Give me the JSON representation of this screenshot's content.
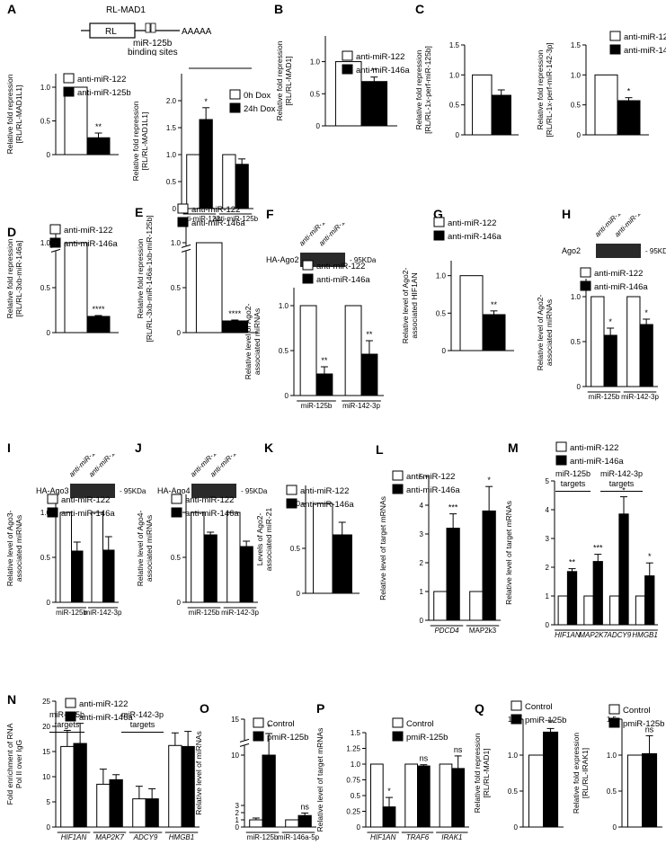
{
  "figure": {
    "schematic": {
      "construct_label": "RL-MAD1",
      "box_label": "RL",
      "tail": "AAAAA",
      "note_line1": "miR-125b",
      "note_line2": "binding sites"
    },
    "blots": {
      "F": {
        "title": "HA-Ago2",
        "size": "95KDa"
      },
      "H": {
        "title": "Ago2",
        "size": "95KDa"
      },
      "I": {
        "title": "HA-Ago3",
        "size": "95KDa"
      },
      "J": {
        "title": "HA-Ago4",
        "size": "95KDa"
      }
    },
    "blot_lanes": [
      "anti-miR-122",
      "anti-miR-146a"
    ],
    "m_groups": [
      "miR-125b\ntargets",
      "miR-142-3p\ntargets"
    ],
    "n_groups": [
      "miR-125b\ntargets",
      "miR-142-3p\ntargets"
    ]
  },
  "chart_data": [
    {
      "id": "A1",
      "panel_label": "A",
      "type": "bar",
      "ylabel": "Relative fold repression\n[RL/RL-MAD1L1]",
      "ylim": [
        0,
        1.2
      ],
      "yticks": [
        0,
        0.5,
        1.0
      ],
      "ytick_labels": [
        "0",
        "0.5",
        "1.0"
      ],
      "series": [
        {
          "name": "anti-miR-122",
          "fill": "#ffffff",
          "values": [
            1.0
          ],
          "errors": [
            0
          ]
        },
        {
          "name": "anti-miR-125b",
          "fill": "#000000",
          "values": [
            0.25
          ],
          "errors": [
            0.07
          ]
        }
      ],
      "categories": [
        ""
      ],
      "annotations": [
        "**"
      ]
    },
    {
      "id": "A2",
      "type": "bar",
      "ylabel": "Relative fold repression\n[RL/RL-MAD1L1]",
      "ylim": [
        0,
        2.5
      ],
      "yticks": [
        0,
        0.5,
        1.0,
        1.5,
        2.0
      ],
      "ytick_labels": [
        "0",
        "0.5",
        "1.0",
        "1.5",
        "2.0"
      ],
      "series": [
        {
          "name": "0h Dox",
          "fill": "#ffffff",
          "values": [
            1.0,
            1.0
          ],
          "errors": [
            0,
            0
          ]
        },
        {
          "name": "24h Dox",
          "fill": "#000000",
          "values": [
            1.65,
            0.82
          ],
          "errors": [
            0.22,
            0.1
          ]
        }
      ],
      "categories": [
        "anti-miR-122",
        "anti-miR-125b"
      ],
      "annotations": [
        "*"
      ]
    },
    {
      "id": "B",
      "panel_label": "B",
      "type": "bar",
      "ylabel": "Relative fold repression\n[RL/RL-MAD1]",
      "ylim": [
        0,
        1.4
      ],
      "yticks": [
        0,
        0.5,
        1.0
      ],
      "ytick_labels": [
        "0",
        "0.5",
        "1.0"
      ],
      "series": [
        {
          "name": "anti-miR-122",
          "fill": "#ffffff",
          "values": [
            1.0
          ],
          "errors": [
            0
          ]
        },
        {
          "name": "anti-miR-146a",
          "fill": "#000000",
          "values": [
            0.69
          ],
          "errors": [
            0.07
          ]
        }
      ],
      "categories": [
        ""
      ],
      "annotations": [
        "**"
      ]
    },
    {
      "id": "C1",
      "panel_label": "C",
      "type": "bar",
      "ylabel": "Relative fold repression\n[RL/RL-1x-perf-miR-125b]",
      "ylim": [
        0,
        1.5
      ],
      "yticks": [
        0,
        0.5,
        1.0,
        1.5
      ],
      "ytick_labels": [
        "0",
        "0.5",
        "1.0",
        "1.5"
      ],
      "series": [
        {
          "name": "anti-miR-122",
          "fill": "#ffffff",
          "values": [
            1.0
          ],
          "errors": [
            0
          ]
        },
        {
          "name": "anti-miR-146a",
          "fill": "#000000",
          "values": [
            0.66
          ],
          "errors": [
            0.09
          ]
        }
      ],
      "categories": [
        ""
      ],
      "annotations": []
    },
    {
      "id": "C2",
      "type": "bar",
      "ylabel": "Relative fold repression\n[RL/RL-1x-perf-miR-142-3p]",
      "ylim": [
        0,
        1.5
      ],
      "yticks": [
        0,
        0.5,
        1.0,
        1.5
      ],
      "ytick_labels": [
        "0",
        "0.5",
        "1.0",
        "1.5"
      ],
      "series": [
        {
          "name": "anti-miR-122",
          "fill": "#ffffff",
          "values": [
            1.0
          ],
          "errors": [
            0
          ]
        },
        {
          "name": "anti-miR-146a",
          "fill": "#000000",
          "values": [
            0.57
          ],
          "errors": [
            0.05
          ]
        }
      ],
      "categories": [
        ""
      ],
      "annotations": [
        "*"
      ]
    },
    {
      "id": "D",
      "panel_label": "D",
      "type": "bar",
      "ylabel": "Relative fold repression\n[RL/RL-3xb-miR-146a]",
      "ylim": [
        0,
        1.2
      ],
      "yticks": [
        0,
        0.5,
        1.0
      ],
      "ytick_labels": [
        "0",
        "0.5",
        "1.0"
      ],
      "axis_break": true,
      "series": [
        {
          "name": "anti-miR-122",
          "fill": "#ffffff",
          "values": [
            1.0
          ],
          "errors": [
            0
          ]
        },
        {
          "name": "anti-miR-146a",
          "fill": "#000000",
          "values": [
            0.18
          ],
          "errors": [
            0.01
          ]
        }
      ],
      "categories": [
        ""
      ],
      "annotations": [
        "****"
      ]
    },
    {
      "id": "E",
      "panel_label": "E",
      "type": "bar",
      "ylabel": "Relative fold repression\n[RL/RL-3xb-miR-146a-1xb-miR-125b]",
      "ylim": [
        0,
        1.2
      ],
      "yticks": [
        0,
        0.5,
        1.0
      ],
      "ytick_labels": [
        "0",
        "0.5",
        "1.0"
      ],
      "axis_break": true,
      "series": [
        {
          "name": "anti-miR-122",
          "fill": "#ffffff",
          "values": [
            1.0
          ],
          "errors": [
            0
          ]
        },
        {
          "name": "anti-miR-146a",
          "fill": "#000000",
          "values": [
            0.13
          ],
          "errors": [
            0.01
          ]
        }
      ],
      "categories": [
        ""
      ],
      "annotations": [
        "****"
      ]
    },
    {
      "id": "F",
      "panel_label": "F",
      "type": "bar",
      "ylabel": "Relative level of Ago2-\nassociated miRNAs",
      "ylim": [
        0,
        1.2
      ],
      "yticks": [
        0,
        0.5,
        1.0
      ],
      "ytick_labels": [
        "0",
        "0.5",
        "1.0"
      ],
      "series": [
        {
          "name": "anti-miR-122",
          "fill": "#ffffff",
          "values": [
            1.0,
            1.0
          ],
          "errors": [
            0,
            0
          ]
        },
        {
          "name": "anti-miR-146a",
          "fill": "#000000",
          "values": [
            0.24,
            0.46
          ],
          "errors": [
            0.08,
            0.15
          ]
        }
      ],
      "categories": [
        "miR-125b",
        "miR-142-3p"
      ],
      "annotations": [
        "**",
        "**"
      ]
    },
    {
      "id": "G",
      "panel_label": "G",
      "type": "bar",
      "ylabel": "Relative level of Ago2-\nassociated HIF1AN",
      "ylim": [
        0,
        1.2
      ],
      "yticks": [
        0,
        0.5,
        1.0
      ],
      "ytick_labels": [
        "0",
        "0.5",
        "1.0"
      ],
      "series": [
        {
          "name": "anti-miR-122",
          "fill": "#ffffff",
          "values": [
            1.0
          ],
          "errors": [
            0
          ]
        },
        {
          "name": "anti-miR-146a",
          "fill": "#000000",
          "values": [
            0.48
          ],
          "errors": [
            0.05
          ]
        }
      ],
      "categories": [
        ""
      ],
      "annotations": [
        "**"
      ]
    },
    {
      "id": "H",
      "panel_label": "H",
      "type": "bar",
      "ylabel": "Relative level of Ago2-\nassociated miRNAs",
      "ylim": [
        0,
        1.2
      ],
      "yticks": [
        0,
        0.5,
        1.0
      ],
      "ytick_labels": [
        "0",
        "0.5",
        "1.0"
      ],
      "series": [
        {
          "name": "anti-miR-122",
          "fill": "#ffffff",
          "values": [
            1.0,
            1.0
          ],
          "errors": [
            0,
            0
          ]
        },
        {
          "name": "anti-miR-146a",
          "fill": "#000000",
          "values": [
            0.57,
            0.69
          ],
          "errors": [
            0.08,
            0.06
          ]
        }
      ],
      "categories": [
        "miR-125b",
        "miR-142-3p"
      ],
      "annotations": [
        "*",
        "*"
      ]
    },
    {
      "id": "I",
      "panel_label": "I",
      "type": "bar",
      "ylabel": "Relative level of Ago3-\nassociated miRNAs",
      "ylim": [
        0,
        1.2
      ],
      "yticks": [
        0,
        0.5,
        1.0
      ],
      "ytick_labels": [
        "0",
        "0.5",
        "1.0"
      ],
      "series": [
        {
          "name": "anti-miR-122",
          "fill": "#ffffff",
          "values": [
            1.0,
            1.0
          ],
          "errors": [
            0,
            0
          ]
        },
        {
          "name": "anti-miR-146a",
          "fill": "#000000",
          "values": [
            0.57,
            0.58
          ],
          "errors": [
            0.1,
            0.15
          ]
        }
      ],
      "categories": [
        "miR-125b",
        "miR-142-3p"
      ],
      "annotations": []
    },
    {
      "id": "J",
      "panel_label": "J",
      "type": "bar",
      "ylabel": "Relative level of Ago4-\nassociated miRNAs",
      "ylim": [
        0,
        1.2
      ],
      "yticks": [
        0,
        0.5,
        1.0
      ],
      "ytick_labels": [
        "0",
        "0.5",
        "1.0"
      ],
      "series": [
        {
          "name": "anti-miR-122",
          "fill": "#ffffff",
          "values": [
            1.0,
            1.0
          ],
          "errors": [
            0,
            0
          ]
        },
        {
          "name": "anti-miR-146a",
          "fill": "#000000",
          "values": [
            0.75,
            0.62
          ],
          "errors": [
            0.03,
            0.06
          ]
        }
      ],
      "categories": [
        "miR-125b",
        "miR-142-3p"
      ],
      "annotations": []
    },
    {
      "id": "K",
      "panel_label": "K",
      "type": "bar",
      "ylabel": "Levels of  Ago2-\nassociated miR-21",
      "ylim": [
        0,
        1.2
      ],
      "yticks": [
        0,
        0.5,
        1.0
      ],
      "ytick_labels": [
        "0",
        "0.5",
        "1.0"
      ],
      "series": [
        {
          "name": "anti-miR-122",
          "fill": "#ffffff",
          "values": [
            1.0
          ],
          "errors": [
            0
          ]
        },
        {
          "name": "anti-miR-146a",
          "fill": "#000000",
          "values": [
            0.65
          ],
          "errors": [
            0.14
          ]
        }
      ],
      "categories": [
        ""
      ],
      "annotations": []
    },
    {
      "id": "L",
      "panel_label": "L",
      "type": "bar",
      "ylabel": "Relative level of target mRNAs",
      "ylim": [
        0,
        5
      ],
      "yticks": [
        0,
        1,
        2,
        3,
        4,
        5
      ],
      "ytick_labels": [
        "0",
        "1",
        "2",
        "3",
        "4",
        "5"
      ],
      "series": [
        {
          "name": "anti-miR-122",
          "fill": "#ffffff",
          "values": [
            1,
            1
          ],
          "errors": [
            0,
            0
          ]
        },
        {
          "name": "anti-miR-146a",
          "fill": "#000000",
          "values": [
            3.2,
            3.8
          ],
          "errors": [
            0.5,
            0.85
          ]
        }
      ],
      "categories": [
        "PDCD4",
        "MAP2k3"
      ],
      "annotations": [
        "***",
        "*"
      ]
    },
    {
      "id": "M",
      "panel_label": "M",
      "type": "bar",
      "ylabel": "Relative level of target mRNAs",
      "ylim": [
        0,
        5
      ],
      "yticks": [
        0,
        1,
        2,
        3,
        4,
        5
      ],
      "ytick_labels": [
        "0",
        "1",
        "2",
        "3",
        "4",
        "5"
      ],
      "series": [
        {
          "name": "anti-miR-122",
          "fill": "#ffffff",
          "values": [
            1,
            1,
            1,
            1
          ],
          "errors": [
            0,
            0,
            0,
            0
          ]
        },
        {
          "name": "anti-miR-146a",
          "fill": "#000000",
          "values": [
            1.85,
            2.2,
            3.85,
            1.7
          ],
          " errors": [
            0
          ],
          "errors": [
            0.1,
            0.25,
            0.6,
            0.45
          ]
        }
      ],
      "categories": [
        "HIF1AN",
        "MAP2K7",
        "ADCY9",
        "HMGB1"
      ],
      "annotations": [
        "**",
        "***",
        "*",
        "*"
      ]
    },
    {
      "id": "N",
      "panel_label": "N",
      "type": "bar",
      "ylabel": "Fold enrichment of RNA\nPol II over IgG",
      "ylim": [
        0,
        25
      ],
      "yticks": [
        0,
        5,
        10,
        15,
        20,
        25
      ],
      "ytick_labels": [
        "0",
        "5",
        "10",
        "15",
        "20",
        "25"
      ],
      "series": [
        {
          "name": "anti-miR-122",
          "fill": "#ffffff",
          "values": [
            16,
            8.5,
            5.6,
            16.2
          ],
          "errors": [
            3.2,
            3,
            2.5,
            2.5
          ]
        },
        {
          "name": "anti-miR-146a",
          "fill": "#000000",
          "values": [
            16.6,
            9.4,
            5.6,
            16
          ],
          "errors": [
            4,
            1,
            2,
            3
          ]
        }
      ],
      "categories": [
        "HIF1AN",
        "MAP2K7",
        "ADCY9",
        "HMGB1"
      ],
      "annotations": []
    },
    {
      "id": "O",
      "panel_label": "O",
      "type": "bar",
      "ylabel": "Relative level of miRNAs",
      "ylim": [
        0,
        15
      ],
      "yticks": [
        0,
        1,
        2,
        3,
        10,
        15
      ],
      "ytick_labels": [
        "0",
        "1",
        "2",
        "3",
        "10",
        "15"
      ],
      "axis_break": true,
      "series": [
        {
          "name": "Control",
          "fill": "#ffffff",
          "values": [
            1,
            1
          ],
          "errors": [
            0.25,
            0
          ]
        },
        {
          "name": "pmiR-125b",
          "fill": "#000000",
          "values": [
            10,
            1.6
          ],
          "errors": [
            3,
            0.35
          ]
        }
      ],
      "categories": [
        "miR-125b",
        "miR-146a-5p"
      ],
      "annotations": [
        "*",
        "ns"
      ]
    },
    {
      "id": "P",
      "panel_label": "P",
      "type": "bar",
      "ylabel": "Relative level of target mRNAs",
      "ylim": [
        0,
        1.5
      ],
      "yticks": [
        0,
        0.25,
        0.5,
        0.75,
        1.0,
        1.25,
        1.5
      ],
      "ytick_labels": [
        "0",
        "0.25",
        "0.5",
        "0.75",
        "1.0",
        "1.25",
        "1.5"
      ],
      "series": [
        {
          "name": "Control",
          "fill": "#ffffff",
          "values": [
            1,
            1,
            1
          ],
          "errors": [
            0,
            0,
            0
          ]
        },
        {
          "name": "pmiR-125b",
          "fill": "#000000",
          "values": [
            0.32,
            0.97,
            0.93
          ],
          "errors": [
            0.15,
            0.02,
            0.2
          ]
        }
      ],
      "categories": [
        "HIF1AN",
        "TRAF6",
        "IRAK1"
      ],
      "annotations": [
        "*",
        "ns",
        "ns"
      ]
    },
    {
      "id": "Q1",
      "panel_label": "Q",
      "type": "bar",
      "ylabel": "Relative fold repression\n[RL/RL-MAD1]",
      "ylim": [
        0,
        1.5
      ],
      "yticks": [
        0,
        0.5,
        1.0,
        1.5
      ],
      "ytick_labels": [
        "0",
        "0.5",
        "1.0",
        "1.5"
      ],
      "series": [
        {
          "name": "Control",
          "fill": "#ffffff",
          "values": [
            1
          ],
          "errors": [
            0
          ]
        },
        {
          "name": "pmiR-125b",
          "fill": "#000000",
          "values": [
            1.32
          ],
          "errors": [
            0.05
          ]
        }
      ],
      "categories": [
        ""
      ],
      "annotations": [
        "**"
      ]
    },
    {
      "id": "Q2",
      "type": "bar",
      "ylabel": "Relative fold expression\n[RL/RL-IRAK1]",
      "ylim": [
        0,
        1.5
      ],
      "yticks": [
        0,
        0.5,
        1.0,
        1.5
      ],
      "ytick_labels": [
        "0",
        "0.5",
        "1.0",
        "1.5"
      ],
      "series": [
        {
          "name": "Control",
          "fill": "#ffffff",
          "values": [
            1
          ],
          "errors": [
            0
          ]
        },
        {
          "name": "pmiR-125b",
          "fill": "#000000",
          "values": [
            1.02
          ],
          "errors": [
            0.25
          ]
        }
      ],
      "categories": [
        ""
      ],
      "annotations": [
        "ns"
      ]
    }
  ]
}
